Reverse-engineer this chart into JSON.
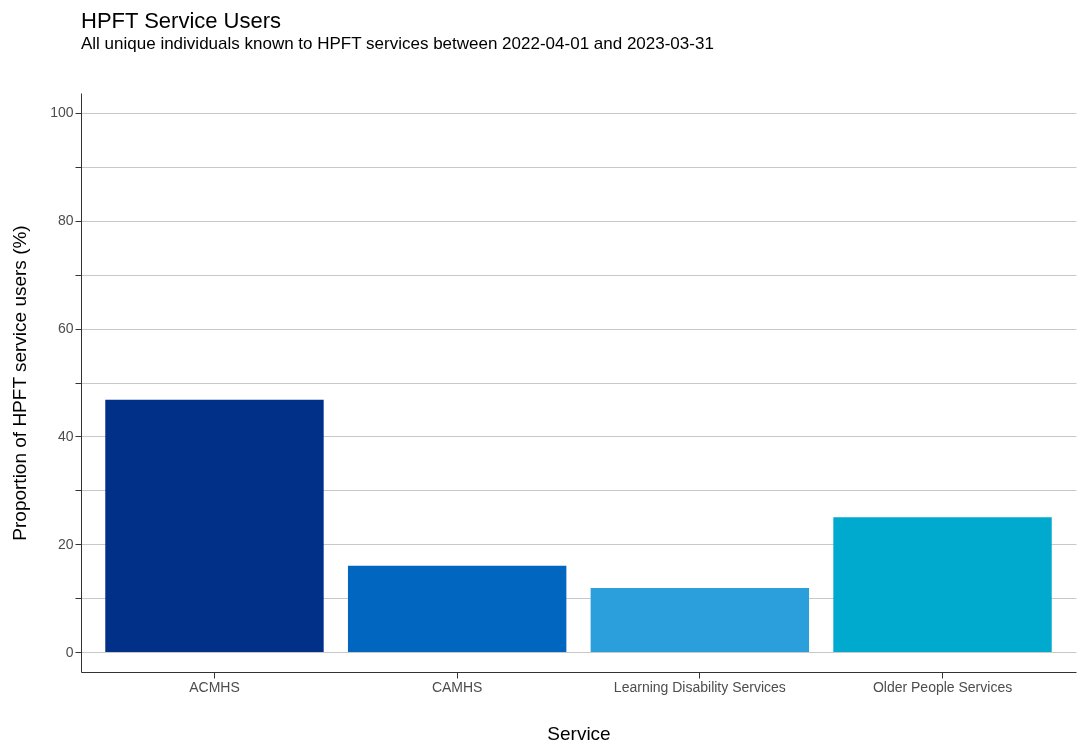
{
  "chart_data": {
    "type": "bar",
    "title": "HPFT Service Users",
    "subtitle": "All unique individuals known to HPFT services between 2022-04-01 and 2023-03-31",
    "xlabel": "Service",
    "ylabel": "Proportion of HPFT service users (%)",
    "categories": [
      "ACMHS",
      "CAMHS",
      "Learning Disability Services",
      "Older People Services"
    ],
    "values": [
      46.8,
      16.0,
      11.9,
      25.0
    ],
    "colors": [
      "#003087",
      "#0066bf",
      "#2b9fdc",
      "#00a9ce"
    ],
    "ylim": [
      -3.7,
      103.7
    ],
    "yticks": [
      0,
      {
        "value": 10,
        "label": null
      },
      20,
      {
        "value": 30,
        "label": null
      },
      40,
      {
        "value": 50,
        "label": null
      },
      60,
      {
        "value": 70,
        "label": null
      },
      80,
      {
        "value": 90,
        "label": null
      },
      100
    ],
    "grid": true
  }
}
